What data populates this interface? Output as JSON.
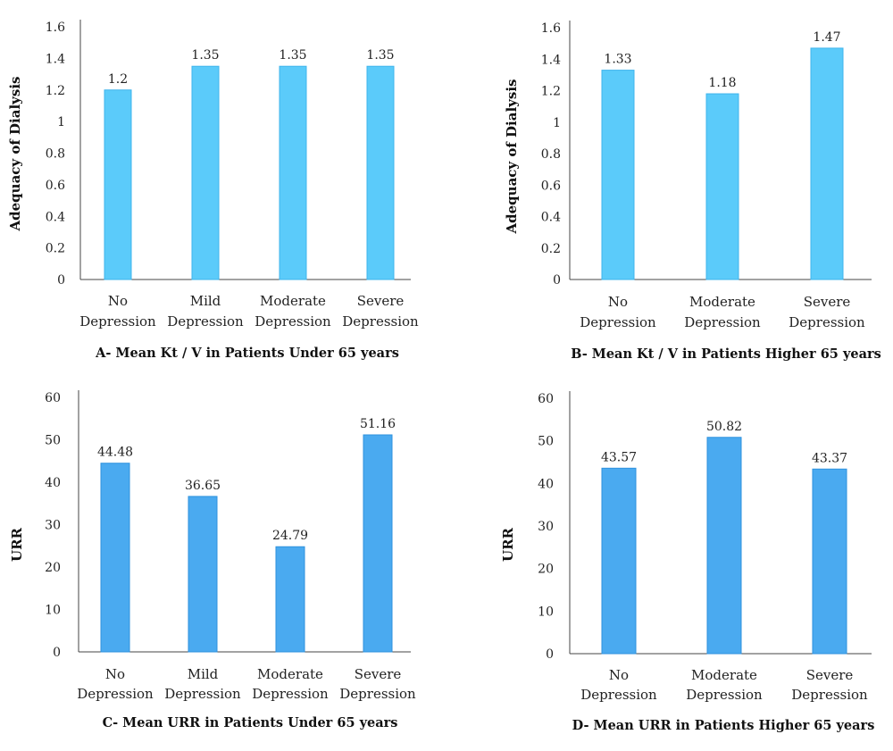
{
  "chart_data": [
    {
      "type": "bar",
      "title": "A- Mean Kt / V in Patients Under 65 years",
      "ylabel": "Adequacy of Dialysis",
      "categories": [
        [
          "No",
          "Depression"
        ],
        [
          "Mild",
          "Depression"
        ],
        [
          "Moderate",
          "Depression"
        ],
        [
          "Severe",
          "Depression"
        ]
      ],
      "values": [
        1.2,
        1.35,
        1.35,
        1.35
      ],
      "value_labels": [
        "1.2",
        "1.35",
        "1.35",
        "1.35"
      ],
      "ylim": [
        0,
        1.6
      ],
      "yticks": [
        "0",
        "0.2",
        "0.4",
        "0.6",
        "0.8",
        "1",
        "1.2",
        "1.4",
        "1.6"
      ],
      "bar_color": "#5bcbfa",
      "bar_edge": "#3fb4ec",
      "grid": false
    },
    {
      "type": "bar",
      "title": "B- Mean Kt / V in Patients Higher 65 years",
      "ylabel": "Adequacy of Dialysis",
      "categories": [
        [
          "No",
          "Depression"
        ],
        [
          "Moderate",
          "Depression"
        ],
        [
          "Severe",
          "Depression"
        ]
      ],
      "values": [
        1.33,
        1.18,
        1.47
      ],
      "value_labels": [
        "1.33",
        "1.18",
        "1.47"
      ],
      "ylim": [
        0,
        1.6
      ],
      "yticks": [
        "0",
        "0.2",
        "0.4",
        "0.6",
        "0.8",
        "1",
        "1.2",
        "1.4",
        "1.6"
      ],
      "bar_color": "#5bcbfa",
      "bar_edge": "#3fb4ec",
      "grid": false
    },
    {
      "type": "bar",
      "title": "C- Mean URR in Patients Under 65 years",
      "ylabel": "URR",
      "categories": [
        [
          "No",
          "Depression"
        ],
        [
          "Mild",
          "Depression"
        ],
        [
          "Moderate",
          "Depression"
        ],
        [
          "Severe",
          "Depression"
        ]
      ],
      "values": [
        44.48,
        36.65,
        24.79,
        51.16
      ],
      "value_labels": [
        "44.48",
        "36.65",
        "24.79",
        "51.16"
      ],
      "ylim": [
        0,
        60
      ],
      "yticks": [
        "0",
        "10",
        "20",
        "30",
        "40",
        "50",
        "60"
      ],
      "bar_color": "#4aaaf0",
      "bar_edge": "#2f92de",
      "grid": false
    },
    {
      "type": "bar",
      "title": "D- Mean URR in Patients Higher 65 years",
      "ylabel": "URR",
      "categories": [
        [
          "No",
          "Depression"
        ],
        [
          "Moderate",
          "Depression"
        ],
        [
          "Severe",
          "Depression"
        ]
      ],
      "values": [
        43.57,
        50.82,
        43.37
      ],
      "value_labels": [
        "43.57",
        "50.82",
        "43.37"
      ],
      "ylim": [
        0,
        60
      ],
      "yticks": [
        "0",
        "10",
        "20",
        "30",
        "40",
        "50",
        "60"
      ],
      "bar_color": "#4aaaf0",
      "bar_edge": "#2f92de",
      "grid": false
    }
  ]
}
